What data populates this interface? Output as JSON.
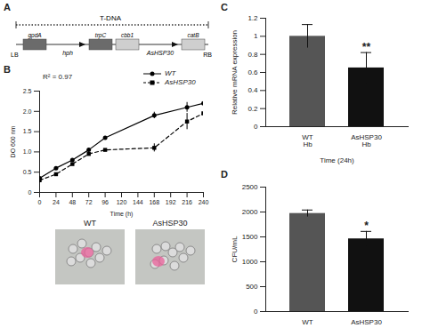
{
  "panel_labels": [
    "A",
    "B",
    "C",
    "D"
  ],
  "diagram": {
    "title": "T-DNA",
    "left_border": "LB",
    "right_border": "RB",
    "elements": [
      {
        "label": "gpdA",
        "kind": "box",
        "color": "#6b6b6b"
      },
      {
        "label": "hph",
        "kind": "arrow"
      },
      {
        "label": "trpC",
        "kind": "box",
        "color": "#6b6b6b"
      },
      {
        "label": "cbb1",
        "kind": "box",
        "color": "#cfcfcf"
      },
      {
        "label": "AsHSP30",
        "kind": "arrow"
      },
      {
        "label": "catB",
        "kind": "box",
        "color": "#cfcfcf"
      }
    ]
  },
  "images": {
    "labels": [
      "WT",
      "AsHSP30"
    ]
  },
  "chart_data": [
    {
      "type": "line",
      "xlabel": "Time (h)",
      "ylabel": "DO 600 nm",
      "annotation": "R² = 0.97",
      "x": [
        0,
        24,
        48,
        72,
        96,
        168,
        216,
        240
      ],
      "xlim": [
        0,
        240
      ],
      "xticks": [
        0,
        24,
        48,
        72,
        96,
        120,
        144,
        168,
        192,
        216,
        240
      ],
      "ylim": [
        0,
        2.5
      ],
      "yticks": [
        0,
        0.5,
        {
          "value": 1,
          "label": "1.0"
        },
        1.5,
        {
          "value": 2,
          "label": "2.0"
        },
        2.5
      ],
      "legend": "top-right",
      "series": [
        {
          "name": "WT",
          "color": "#000000",
          "marker": "circle",
          "line_style": "solid",
          "values": [
            0.35,
            0.6,
            0.8,
            1.05,
            1.35,
            1.9,
            2.1,
            2.2
          ],
          "errors": [
            null,
            null,
            null,
            null,
            null,
            0.08,
            0.12,
            0.15
          ]
        },
        {
          "name": "AsHSP30",
          "color": "#000000",
          "marker": "square",
          "line_style": "dashed",
          "values": [
            0.3,
            0.45,
            0.7,
            0.95,
            1.05,
            1.1,
            1.75,
            1.95
          ],
          "errors": [
            null,
            null,
            null,
            null,
            null,
            0.1,
            0.2,
            0.2
          ]
        }
      ]
    },
    {
      "type": "bar",
      "categories": [
        "WT\nHb",
        "AsHSP30\nHb"
      ],
      "values": [
        1.0,
        0.65
      ],
      "errors": [
        0.13,
        0.17
      ],
      "colors": [
        "#555555",
        "#111111"
      ],
      "annotations": [
        null,
        "**"
      ],
      "xlabel": "Time (24h)",
      "ylabel": "Relative mRNA expression",
      "ylim": [
        0,
        1.2
      ],
      "yticks": [
        0,
        0.2,
        0.4,
        0.6,
        0.8,
        1,
        1.2
      ]
    },
    {
      "type": "bar",
      "categories": [
        "WT",
        "AsHSP30"
      ],
      "values": [
        1970,
        1460
      ],
      "errors": [
        70,
        150
      ],
      "colors": [
        "#555555",
        "#111111"
      ],
      "annotations": [
        null,
        "*"
      ],
      "ylabel": "CFU/mL",
      "ylim": [
        0,
        2500
      ],
      "yticks": [
        0,
        500,
        1000,
        1500,
        2000,
        2500
      ]
    }
  ]
}
